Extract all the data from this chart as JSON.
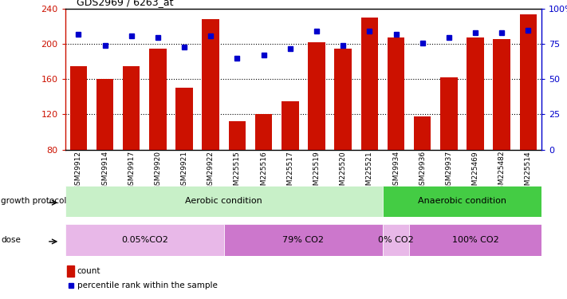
{
  "title": "GDS2969 / 6263_at",
  "samples": [
    "GSM29912",
    "GSM29914",
    "GSM29917",
    "GSM29920",
    "GSM29921",
    "GSM29922",
    "GSM225515",
    "GSM225516",
    "GSM225517",
    "GSM225519",
    "GSM225520",
    "GSM225521",
    "GSM29934",
    "GSM29936",
    "GSM29937",
    "GSM225469",
    "GSM225482",
    "GSM225514"
  ],
  "counts": [
    175,
    160,
    175,
    195,
    150,
    228,
    112,
    120,
    135,
    202,
    195,
    230,
    208,
    118,
    162,
    208,
    206,
    234
  ],
  "percentiles": [
    82,
    74,
    81,
    80,
    73,
    81,
    65,
    67,
    72,
    84,
    74,
    84,
    82,
    76,
    80,
    83,
    83,
    85
  ],
  "ylim_left": [
    80,
    240
  ],
  "ylim_right": [
    0,
    100
  ],
  "yticks_left": [
    80,
    120,
    160,
    200,
    240
  ],
  "yticks_right": [
    0,
    25,
    50,
    75,
    100
  ],
  "bar_color": "#cc1100",
  "dot_color": "#0000cc",
  "background_color": "#ffffff",
  "growth_protocol_label": "growth protocol",
  "dose_label": "dose",
  "aerobic_label": "Aerobic condition",
  "anaerobic_label": "Anaerobic condition",
  "dose_labels": [
    "0.05%CO2",
    "79% CO2",
    "0% CO2",
    "100% CO2"
  ],
  "aerobic_color_light": "#c8f0c8",
  "aerobic_color_dark": "#44cc44",
  "dose_color_light": "#e8b8e8",
  "dose_color_dark": "#cc77cc",
  "legend_count_label": "count",
  "legend_pct_label": "percentile rank within the sample",
  "aerobic_count": 12,
  "dose_sample_counts": [
    6,
    6,
    1,
    5
  ]
}
